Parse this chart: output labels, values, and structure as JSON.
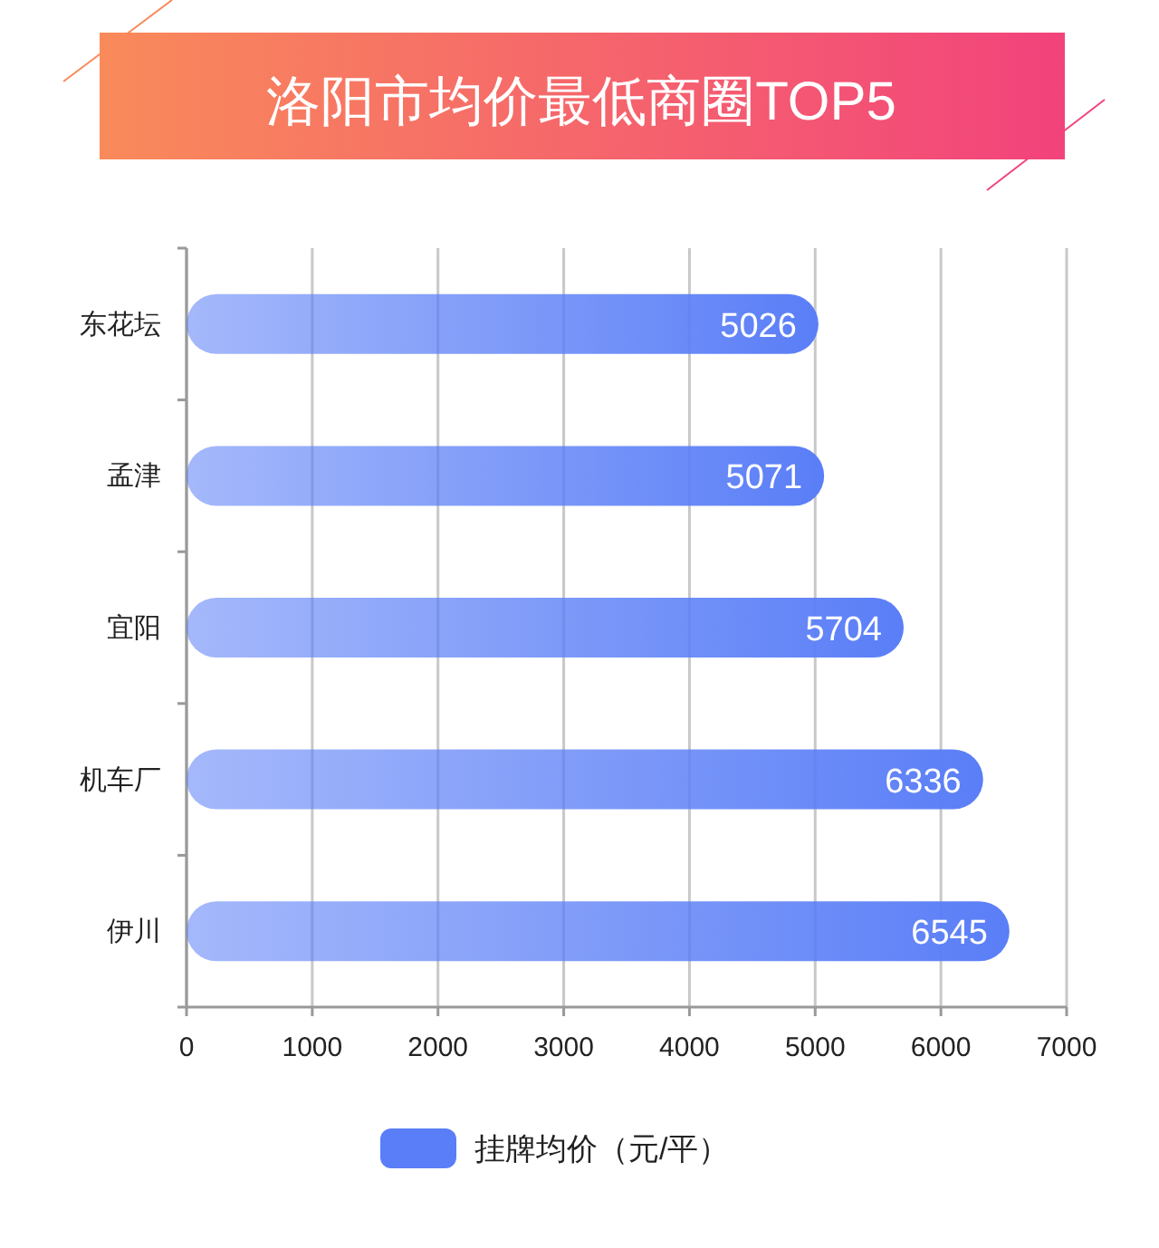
{
  "chart_data": {
    "type": "bar",
    "orientation": "horizontal",
    "title": "洛阳市均价最低商圈TOP5",
    "categories": [
      "东花坛",
      "孟津",
      "宜阳",
      "机车厂",
      "伊川"
    ],
    "series": [
      {
        "name": "挂牌均价（元/平）",
        "color": "#5a7ef7",
        "values": [
          5026,
          5071,
          5704,
          6336,
          6545
        ]
      }
    ],
    "xlim": [
      0,
      7000
    ],
    "xticks": [
      0,
      1000,
      2000,
      3000,
      4000,
      5000,
      6000,
      7000
    ],
    "grid": "x",
    "legend": "bottom",
    "data_labels": true
  }
}
